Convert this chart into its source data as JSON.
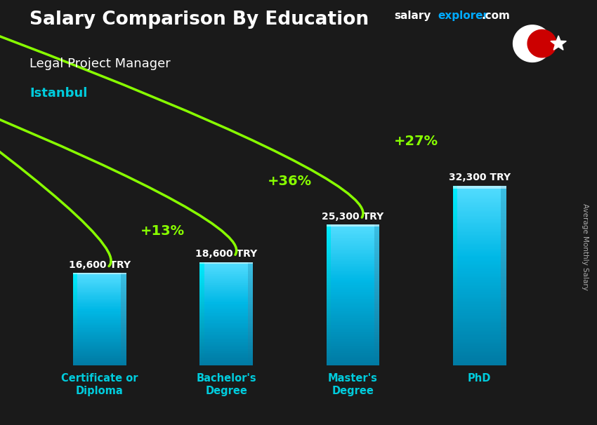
{
  "title_main": "Salary Comparison By Education",
  "title_sub": "Legal Project Manager",
  "title_city": "Istanbul",
  "ylabel": "Average Monthly Salary",
  "categories": [
    "Certificate or\nDiploma",
    "Bachelor's\nDegree",
    "Master's\nDegree",
    "PhD"
  ],
  "values": [
    16600,
    18600,
    25300,
    32300
  ],
  "value_labels": [
    "16,600 TRY",
    "18,600 TRY",
    "25,300 TRY",
    "32,300 TRY"
  ],
  "pct_labels": [
    "+13%",
    "+36%",
    "+27%"
  ],
  "bar_color_main": "#00b8e6",
  "bar_color_light": "#55ddff",
  "bar_color_dark": "#007aa3",
  "bar_color_edge": "#00eeff",
  "bg_color": "#1a1a1a",
  "title_color": "#ffffff",
  "subtitle_color": "#ffffff",
  "city_color": "#00ccdd",
  "pct_color": "#88ff00",
  "value_label_color": "#ffffff",
  "watermark_salary_color": "#ffffff",
  "watermark_explorer_color": "#00aaff",
  "xtick_color": "#00ccdd",
  "ylabel_color": "#aaaaaa",
  "ylim": [
    0,
    42000
  ],
  "bar_width": 0.42,
  "bar_spacing": 1.0
}
